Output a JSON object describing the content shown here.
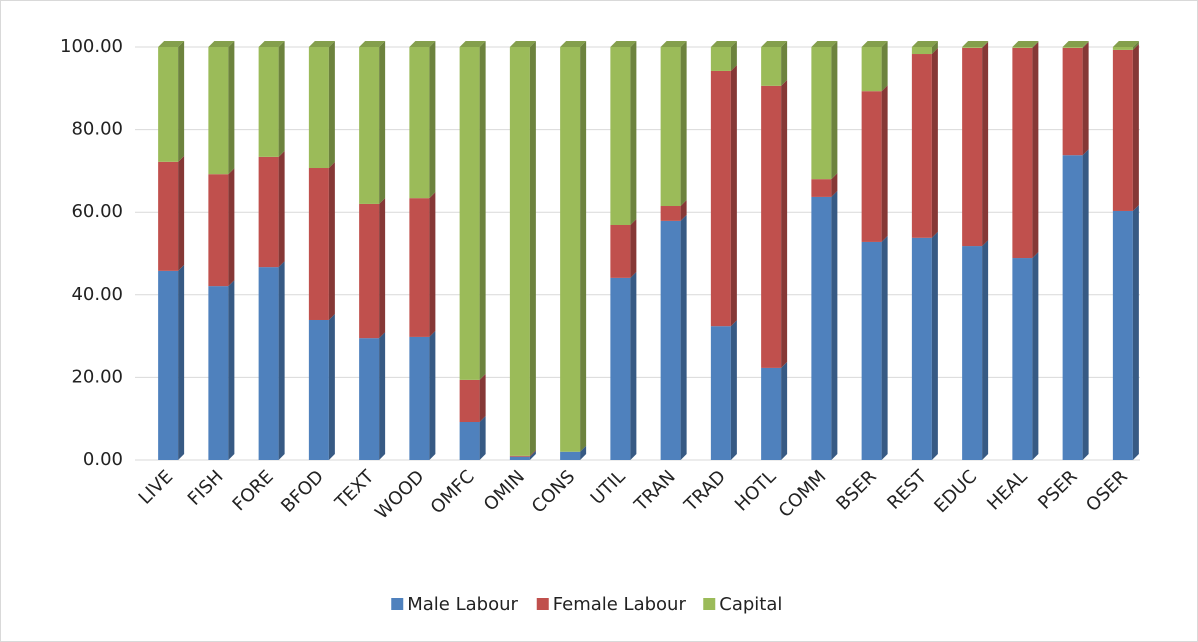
{
  "chart_data": {
    "type": "bar",
    "stacked": true,
    "categories": [
      "LIVE",
      "FISH",
      "FORE",
      "BFOD",
      "TEXT",
      "WOOD",
      "OMFC",
      "OMIN",
      "CONS",
      "UTIL",
      "TRAN",
      "TRAD",
      "HOTL",
      "COMM",
      "BSER",
      "REST",
      "EDUC",
      "HEAL",
      "PSER",
      "OSER"
    ],
    "series": [
      {
        "name": "Male Labour",
        "color": "#4f81bd",
        "values": [
          45.8,
          42.1,
          46.7,
          33.9,
          29.5,
          29.8,
          9.2,
          0.8,
          2.0,
          44.1,
          57.9,
          32.4,
          22.3,
          63.7,
          52.8,
          53.8,
          51.8,
          48.9,
          73.8,
          60.3
        ]
      },
      {
        "name": "Female Labour",
        "color": "#c0504d",
        "values": [
          26.4,
          27.1,
          26.7,
          36.8,
          32.5,
          33.6,
          10.2,
          0.2,
          0.0,
          12.8,
          3.6,
          61.8,
          68.3,
          4.3,
          36.5,
          44.5,
          48.0,
          50.9,
          26.0,
          39.0
        ]
      },
      {
        "name": "Capital",
        "color": "#9bbb59",
        "values": [
          27.8,
          30.8,
          26.6,
          29.3,
          38.0,
          36.6,
          80.6,
          99.0,
          98.0,
          43.1,
          38.5,
          5.8,
          9.4,
          32.0,
          10.7,
          1.7,
          0.2,
          0.2,
          0.2,
          0.7
        ]
      }
    ],
    "ylim": [
      0,
      100
    ],
    "yticks": [
      {
        "value": 0,
        "label": "0.00"
      },
      {
        "value": 20,
        "label": "20.00"
      },
      {
        "value": 40,
        "label": "40.00"
      },
      {
        "value": 60,
        "label": "60.00"
      },
      {
        "value": 80,
        "label": "80.00"
      },
      {
        "value": 100,
        "label": "100.00"
      }
    ],
    "grid": true,
    "legend": "bottom"
  }
}
